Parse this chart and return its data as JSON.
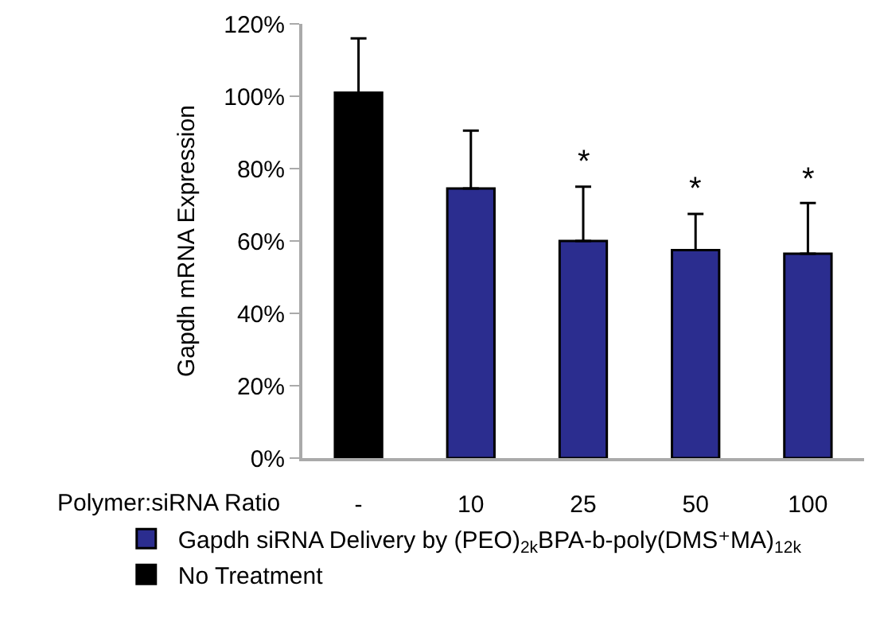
{
  "chart_data": {
    "type": "bar",
    "ylabel": "Gapdh mRNA Expression",
    "xlabel": "Polymer:siRNA Ratio",
    "categories": [
      "-",
      "10",
      "25",
      "50",
      "100"
    ],
    "series": [
      {
        "name": "Gapdh siRNA Delivery by (PEO)$_{2k}$BPA-b-poly(DMS⁺MA)$_{12k}$",
        "color": "#2b2d8f",
        "values": [
          null,
          74.5,
          60,
          57.5,
          56.5
        ],
        "errors": [
          null,
          [
            74.5,
            90.5
          ],
          [
            60,
            75
          ],
          [
            57.5,
            67.5
          ],
          [
            56.5,
            70.5
          ]
        ]
      },
      {
        "name": "No Treatment",
        "color": "#000000",
        "values": [
          101,
          null,
          null,
          null,
          null
        ],
        "errors": [
          [
            101,
            116
          ],
          null,
          null,
          null,
          null
        ]
      }
    ],
    "ylim": [
      0,
      120
    ],
    "yticks": [
      {
        "value": 0,
        "label": "0%"
      },
      {
        "value": 20,
        "label": "20%"
      },
      {
        "value": 40,
        "label": "40%"
      },
      {
        "value": 60,
        "label": "60%"
      },
      {
        "value": 80,
        "label": "80%"
      },
      {
        "value": 100,
        "label": "100%"
      },
      {
        "value": 120,
        "label": "120%"
      }
    ],
    "annotations": [
      {
        "text": "*",
        "x": "25",
        "y": 75
      },
      {
        "text": "*",
        "x": "50",
        "y": 67.5
      },
      {
        "text": "*",
        "x": "100",
        "y": 70.5
      }
    ],
    "grid": false,
    "legend": "bottom"
  }
}
